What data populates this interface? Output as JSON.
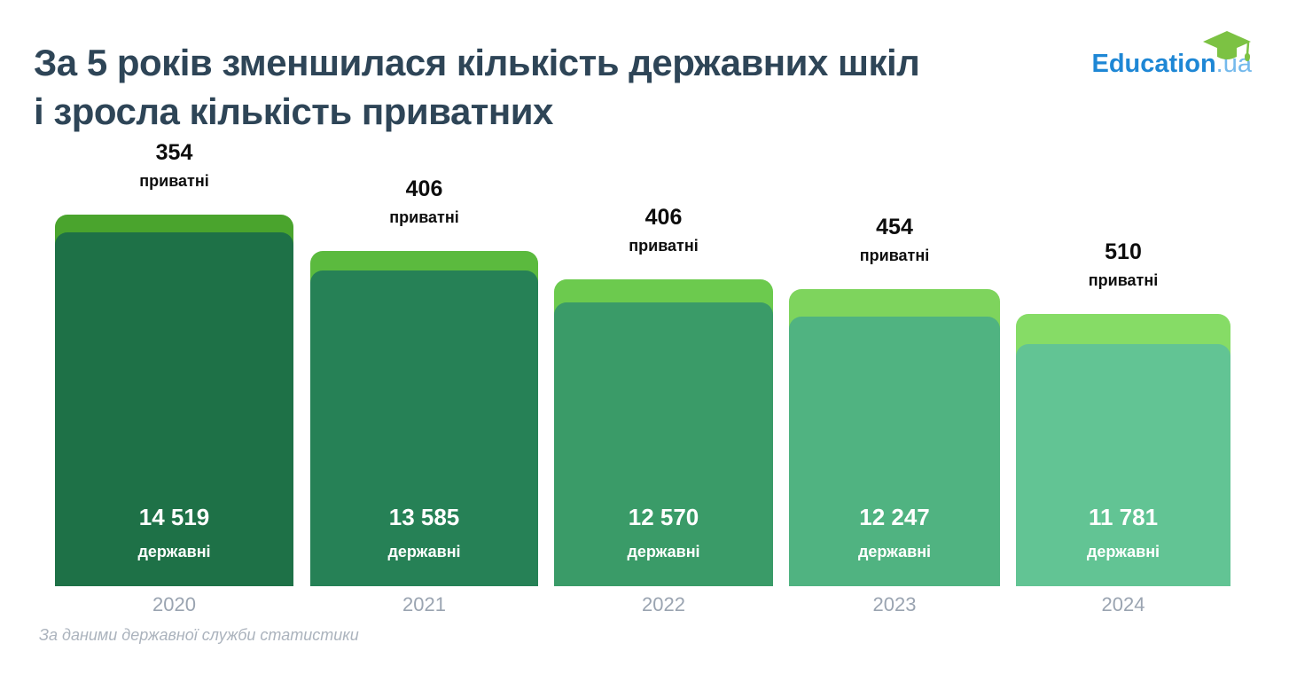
{
  "header": {
    "title_line1": "За 5 років зменшилася кількість державних шкіл",
    "title_line2": "і зросла кількість приватних",
    "title_color": "#2e4557"
  },
  "logo": {
    "text": "Education",
    "suffix": ".ua",
    "text_color": "#1e87d5",
    "suffix_color": "#74b9ec",
    "cap_color": "#7cc243"
  },
  "footer": {
    "source_note": "За даними державної служби статистики"
  },
  "chart_data": {
    "type": "bar",
    "stacked": true,
    "title": "За 5 років зменшилася кількість державних шкіл і зросла кількість приватних",
    "xlabel": "",
    "ylabel": "",
    "grid": false,
    "legend_position": "labels-on-bars",
    "categories": [
      "2020",
      "2021",
      "2022",
      "2023",
      "2024"
    ],
    "series": [
      {
        "name": "державні",
        "values": [
          14519,
          13585,
          12570,
          12247,
          11781
        ]
      },
      {
        "name": "приватні",
        "values": [
          354,
          406,
          406,
          454,
          510
        ]
      }
    ],
    "bars": [
      {
        "year": "2020",
        "private_count": "354",
        "private_label": "приватні",
        "state_count": "14 519",
        "state_label": "державні",
        "cap_color": "#4aa42d",
        "bar_color": "#1e7147"
      },
      {
        "year": "2021",
        "private_count": "406",
        "private_label": "приватні",
        "state_count": "13 585",
        "state_label": "державні",
        "cap_color": "#5bba3e",
        "bar_color": "#268156"
      },
      {
        "year": "2022",
        "private_count": "406",
        "private_label": "приватні",
        "state_count": "12 570",
        "state_label": "державні",
        "cap_color": "#6cca4e",
        "bar_color": "#3a9b68"
      },
      {
        "year": "2023",
        "private_count": "454",
        "private_label": "приватні",
        "state_count": "12 247",
        "state_label": "державні",
        "cap_color": "#7ed45d",
        "bar_color": "#50b381"
      },
      {
        "year": "2024",
        "private_count": "510",
        "private_label": "приватні",
        "state_count": "11 781",
        "state_label": "державні",
        "cap_color": "#86dc66",
        "bar_color": "#62c494"
      }
    ]
  }
}
